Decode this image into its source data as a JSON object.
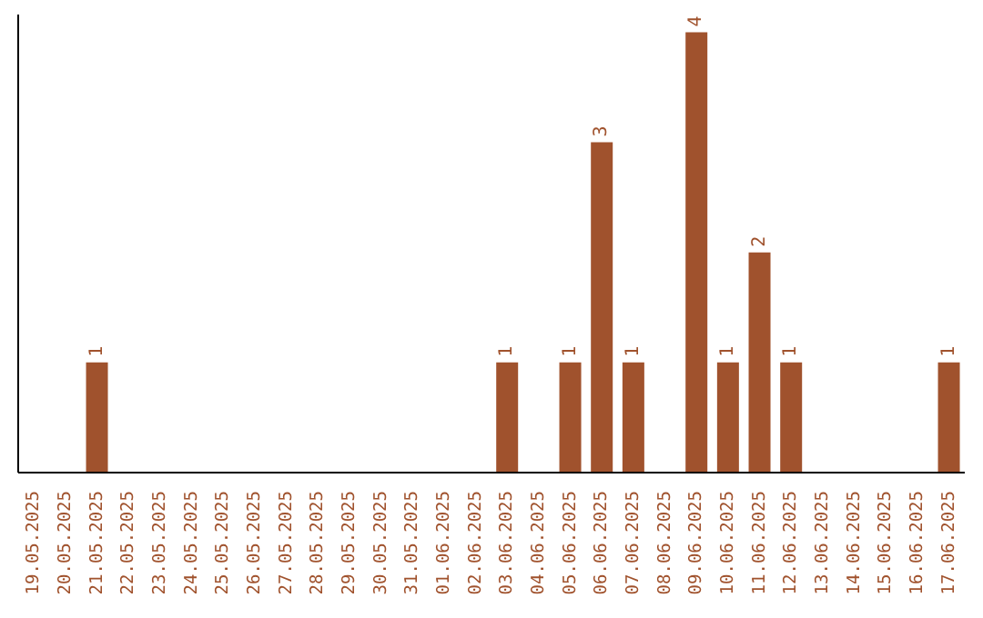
{
  "chart_data": {
    "type": "bar",
    "categories": [
      "19.05.2025",
      "20.05.2025",
      "21.05.2025",
      "22.05.2025",
      "23.05.2025",
      "24.05.2025",
      "25.05.2025",
      "26.05.2025",
      "27.05.2025",
      "28.05.2025",
      "29.05.2025",
      "30.05.2025",
      "31.05.2025",
      "01.06.2025",
      "02.06.2025",
      "03.06.2025",
      "04.06.2025",
      "05.06.2025",
      "06.06.2025",
      "07.06.2025",
      "08.06.2025",
      "09.06.2025",
      "10.06.2025",
      "11.06.2025",
      "12.06.2025",
      "13.06.2025",
      "14.06.2025",
      "15.06.2025",
      "16.06.2025",
      "17.06.2025"
    ],
    "values": [
      0,
      0,
      1,
      0,
      0,
      0,
      0,
      0,
      0,
      0,
      0,
      0,
      0,
      0,
      0,
      1,
      0,
      1,
      3,
      1,
      0,
      4,
      1,
      2,
      1,
      0,
      0,
      0,
      0,
      1
    ],
    "value_labels": [
      null,
      null,
      "1",
      null,
      null,
      null,
      null,
      null,
      null,
      null,
      null,
      null,
      null,
      null,
      null,
      "1",
      null,
      "1",
      "3",
      "1",
      null,
      "4",
      "1",
      "2",
      "1",
      null,
      null,
      null,
      null,
      "1"
    ],
    "color": "#a0522d",
    "grid": false
  }
}
